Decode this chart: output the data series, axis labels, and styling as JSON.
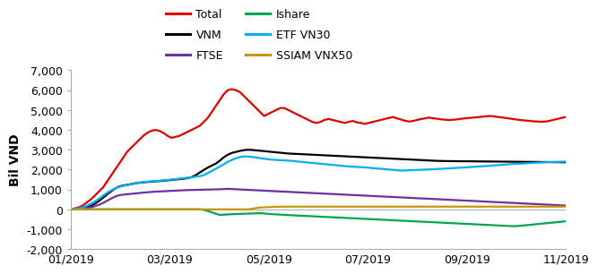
{
  "ylabel": "Bil VND",
  "ylim": [
    -2000,
    7000
  ],
  "yticks": [
    -2000,
    -1000,
    0,
    1000,
    2000,
    3000,
    4000,
    5000,
    6000,
    7000
  ],
  "xtick_labels": [
    "01/2019",
    "03/2019",
    "05/2019",
    "07/2019",
    "09/2019",
    "11/2019"
  ],
  "series": {
    "Total": {
      "color": "#e00000",
      "data": [
        0,
        50,
        100,
        200,
        350,
        500,
        700,
        900,
        1100,
        1400,
        1700,
        2000,
        2300,
        2600,
        2900,
        3100,
        3300,
        3500,
        3700,
        3850,
        3950,
        4000,
        3950,
        3850,
        3700,
        3600,
        3650,
        3700,
        3800,
        3900,
        4000,
        4100,
        4200,
        4400,
        4600,
        4900,
        5200,
        5500,
        5800,
        6000,
        6050,
        6000,
        5900,
        5700,
        5500,
        5300,
        5100,
        4900,
        4700,
        4800,
        4900,
        5000,
        5100,
        5100,
        5000,
        4900,
        4800,
        4700,
        4600,
        4500,
        4400,
        4350,
        4400,
        4500,
        4550,
        4500,
        4450,
        4400,
        4350,
        4400,
        4450,
        4380,
        4350,
        4300,
        4350,
        4400,
        4450,
        4500,
        4550,
        4600,
        4650,
        4580,
        4520,
        4460,
        4420,
        4450,
        4500,
        4550,
        4580,
        4620,
        4580,
        4560,
        4530,
        4510,
        4490,
        4510,
        4530,
        4560,
        4580,
        4600,
        4620,
        4640,
        4660,
        4680,
        4700,
        4680,
        4650,
        4630,
        4600,
        4570,
        4540,
        4510,
        4490,
        4470,
        4450,
        4430,
        4420,
        4410,
        4420,
        4460,
        4510,
        4560,
        4610,
        4650
      ]
    },
    "VNM": {
      "color": "#000000",
      "data": [
        0,
        10,
        25,
        50,
        100,
        180,
        280,
        420,
        580,
        750,
        900,
        1050,
        1150,
        1200,
        1230,
        1270,
        1310,
        1340,
        1360,
        1380,
        1390,
        1410,
        1420,
        1440,
        1460,
        1480,
        1500,
        1520,
        1540,
        1570,
        1620,
        1720,
        1850,
        1980,
        2100,
        2200,
        2300,
        2450,
        2620,
        2750,
        2840,
        2890,
        2940,
        2980,
        3000,
        2990,
        2970,
        2950,
        2930,
        2910,
        2890,
        2870,
        2850,
        2830,
        2810,
        2800,
        2790,
        2780,
        2770,
        2760,
        2750,
        2740,
        2730,
        2720,
        2710,
        2700,
        2690,
        2680,
        2670,
        2660,
        2650,
        2640,
        2630,
        2620,
        2610,
        2600,
        2590,
        2580,
        2570,
        2560,
        2550,
        2540,
        2530,
        2520,
        2510,
        2500,
        2490,
        2480,
        2470,
        2460,
        2450,
        2440,
        2435,
        2430,
        2428,
        2426,
        2424,
        2422,
        2420,
        2418,
        2416,
        2414,
        2412,
        2410,
        2408,
        2406,
        2404,
        2402,
        2400,
        2398,
        2396,
        2394,
        2392,
        2390,
        2388,
        2386,
        2384,
        2382,
        2380,
        2378,
        2376,
        2374,
        2372,
        2370
      ]
    },
    "FTSE": {
      "color": "#7030a0",
      "data": [
        0,
        5,
        15,
        30,
        60,
        100,
        160,
        230,
        320,
        430,
        540,
        640,
        710,
        740,
        760,
        780,
        800,
        820,
        840,
        860,
        875,
        890,
        900,
        910,
        920,
        930,
        940,
        950,
        960,
        970,
        975,
        980,
        985,
        990,
        995,
        1000,
        1005,
        1010,
        1020,
        1030,
        1020,
        1010,
        1000,
        990,
        980,
        970,
        960,
        950,
        940,
        930,
        920,
        910,
        900,
        890,
        880,
        870,
        860,
        850,
        840,
        830,
        820,
        810,
        800,
        790,
        780,
        770,
        760,
        750,
        740,
        730,
        720,
        710,
        700,
        690,
        680,
        670,
        660,
        650,
        640,
        630,
        620,
        610,
        600,
        590,
        580,
        570,
        560,
        550,
        540,
        530,
        520,
        510,
        500,
        490,
        480,
        470,
        460,
        450,
        440,
        430,
        420,
        410,
        400,
        390,
        380,
        370,
        360,
        350,
        340,
        330,
        320,
        310,
        300,
        290,
        280,
        270,
        260,
        250,
        240,
        230,
        220,
        210,
        200,
        190
      ]
    },
    "Ishare": {
      "color": "#00a550",
      "data": [
        0,
        0,
        0,
        0,
        0,
        0,
        0,
        0,
        0,
        0,
        0,
        0,
        0,
        0,
        0,
        0,
        0,
        0,
        0,
        0,
        0,
        0,
        0,
        0,
        0,
        0,
        0,
        0,
        0,
        0,
        0,
        0,
        0,
        -30,
        -80,
        -150,
        -220,
        -280,
        -270,
        -255,
        -245,
        -238,
        -230,
        -222,
        -215,
        -208,
        -200,
        -195,
        -210,
        -230,
        -245,
        -255,
        -265,
        -278,
        -292,
        -300,
        -310,
        -320,
        -330,
        -340,
        -350,
        -360,
        -370,
        -380,
        -390,
        -400,
        -410,
        -420,
        -430,
        -440,
        -450,
        -460,
        -470,
        -480,
        -490,
        -500,
        -510,
        -520,
        -530,
        -540,
        -550,
        -560,
        -570,
        -580,
        -590,
        -600,
        -610,
        -620,
        -630,
        -640,
        -650,
        -660,
        -670,
        -680,
        -690,
        -700,
        -710,
        -720,
        -730,
        -740,
        -750,
        -760,
        -770,
        -780,
        -790,
        -800,
        -810,
        -820,
        -830,
        -840,
        -850,
        -840,
        -820,
        -800,
        -780,
        -760,
        -740,
        -720,
        -700,
        -680,
        -660,
        -640,
        -620,
        -600
      ]
    },
    "ETF VN30": {
      "color": "#00b0f0",
      "data": [
        0,
        20,
        50,
        100,
        180,
        280,
        400,
        530,
        680,
        830,
        950,
        1050,
        1130,
        1180,
        1220,
        1260,
        1310,
        1350,
        1370,
        1390,
        1410,
        1425,
        1440,
        1460,
        1480,
        1500,
        1520,
        1545,
        1565,
        1590,
        1615,
        1640,
        1665,
        1720,
        1820,
        1930,
        2040,
        2150,
        2270,
        2390,
        2490,
        2570,
        2630,
        2660,
        2660,
        2640,
        2610,
        2580,
        2550,
        2520,
        2500,
        2488,
        2476,
        2465,
        2453,
        2435,
        2415,
        2395,
        2375,
        2355,
        2335,
        2315,
        2295,
        2275,
        2255,
        2238,
        2218,
        2198,
        2178,
        2160,
        2148,
        2136,
        2125,
        2113,
        2095,
        2076,
        2058,
        2040,
        2022,
        2004,
        1986,
        1968,
        1950,
        1958,
        1966,
        1975,
        1984,
        1992,
        2000,
        2010,
        2020,
        2030,
        2040,
        2052,
        2064,
        2076,
        2088,
        2100,
        2112,
        2125,
        2138,
        2152,
        2166,
        2180,
        2195,
        2210,
        2225,
        2240,
        2255,
        2268,
        2280,
        2292,
        2304,
        2316,
        2328,
        2340,
        2350,
        2360,
        2368,
        2376,
        2384,
        2392,
        2400,
        2408
      ]
    },
    "SSIAM VNX50": {
      "color": "#c8960c",
      "data": [
        0,
        0,
        0,
        0,
        0,
        0,
        0,
        0,
        0,
        0,
        0,
        0,
        0,
        0,
        0,
        0,
        0,
        0,
        0,
        0,
        0,
        0,
        0,
        0,
        0,
        0,
        0,
        0,
        0,
        0,
        0,
        0,
        0,
        0,
        0,
        0,
        0,
        0,
        0,
        0,
        0,
        0,
        0,
        0,
        0,
        30,
        60,
        90,
        100,
        110,
        118,
        124,
        130,
        132,
        134,
        135,
        136,
        136,
        136,
        136,
        136,
        136,
        136,
        136,
        136,
        136,
        136,
        136,
        136,
        136,
        136,
        136,
        136,
        136,
        136,
        136,
        136,
        136,
        136,
        136,
        136,
        136,
        136,
        136,
        136,
        136,
        136,
        136,
        136,
        136,
        136,
        136,
        136,
        136,
        136,
        136,
        136,
        136,
        136,
        136,
        136,
        136,
        136,
        136,
        136,
        136,
        136,
        136,
        136,
        136,
        136,
        136,
        136,
        136,
        136,
        136,
        136,
        136,
        136,
        136,
        136,
        136,
        136,
        136
      ]
    }
  },
  "legend_order": [
    "Total",
    "VNM",
    "FTSE",
    "Ishare",
    "ETF VN30",
    "SSIAM VNX50"
  ],
  "legend_colors": {
    "Total": "#e00000",
    "VNM": "#000000",
    "FTSE": "#7030a0",
    "Ishare": "#00a550",
    "ETF VN30": "#00b0f0",
    "SSIAM VNX50": "#c8960c"
  },
  "background_color": "#ffffff"
}
